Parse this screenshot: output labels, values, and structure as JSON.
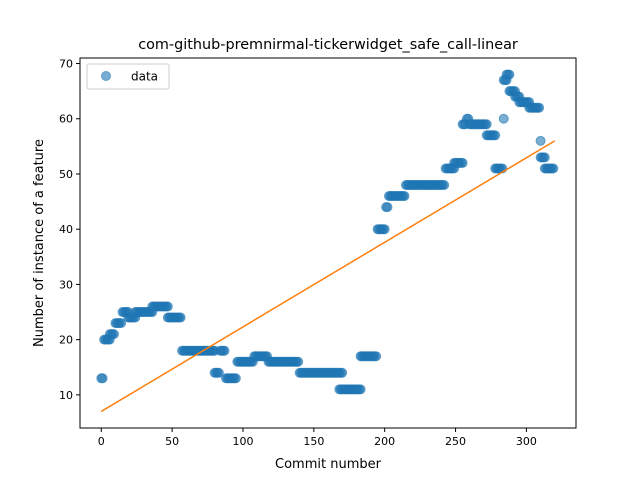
{
  "chart_data": {
    "type": "scatter",
    "title": "com-github-premnirmal-tickerwidget_safe_call-linear",
    "xlabel": "Commit number",
    "ylabel": "Number of instance of a feature",
    "xlim": [
      -15,
      335
    ],
    "ylim": [
      4,
      71
    ],
    "xticks": [
      0,
      50,
      100,
      150,
      200,
      250,
      300
    ],
    "yticks": [
      10,
      20,
      30,
      40,
      50,
      60,
      70
    ],
    "grid": false,
    "legend": {
      "placement": "top-left",
      "entries": [
        "data"
      ]
    },
    "colors": {
      "data": "#1f77b4",
      "fit": "#ff7f0e"
    },
    "series": [
      {
        "name": "data",
        "kind": "points",
        "segments": [
          [
            0,
            1,
            13
          ],
          [
            2,
            6,
            20
          ],
          [
            6,
            9,
            21
          ],
          [
            10,
            14,
            23
          ],
          [
            15,
            19,
            25
          ],
          [
            19,
            24,
            24
          ],
          [
            24,
            36,
            25
          ],
          [
            36,
            47,
            26
          ],
          [
            47,
            56,
            24
          ],
          [
            57,
            80,
            18
          ],
          [
            80,
            83,
            14
          ],
          [
            84,
            87,
            18
          ],
          [
            88,
            95,
            13
          ],
          [
            96,
            107,
            16
          ],
          [
            108,
            117,
            17
          ],
          [
            118,
            139,
            16
          ],
          [
            140,
            170,
            14
          ],
          [
            168,
            183,
            11
          ],
          [
            183,
            194,
            17
          ],
          [
            195,
            200,
            40
          ],
          [
            201,
            202,
            44
          ],
          [
            203,
            214,
            46
          ],
          [
            215,
            242,
            48
          ],
          [
            243,
            249,
            51
          ],
          [
            249,
            255,
            52
          ],
          [
            255,
            257,
            59
          ],
          [
            258,
            259,
            60
          ],
          [
            260,
            272,
            59
          ],
          [
            272,
            278,
            57
          ],
          [
            278,
            283,
            51
          ],
          [
            284,
            284,
            60
          ],
          [
            284,
            286,
            67
          ],
          [
            286,
            288,
            68
          ],
          [
            288,
            292,
            65
          ],
          [
            292,
            295,
            64
          ],
          [
            295,
            302,
            63
          ],
          [
            302,
            309,
            62
          ],
          [
            310,
            310,
            56
          ],
          [
            310,
            313,
            53
          ],
          [
            313,
            319,
            51
          ]
        ]
      },
      {
        "name": "fit",
        "kind": "line",
        "x": [
          0,
          320
        ],
        "y": [
          7,
          56
        ]
      }
    ]
  }
}
